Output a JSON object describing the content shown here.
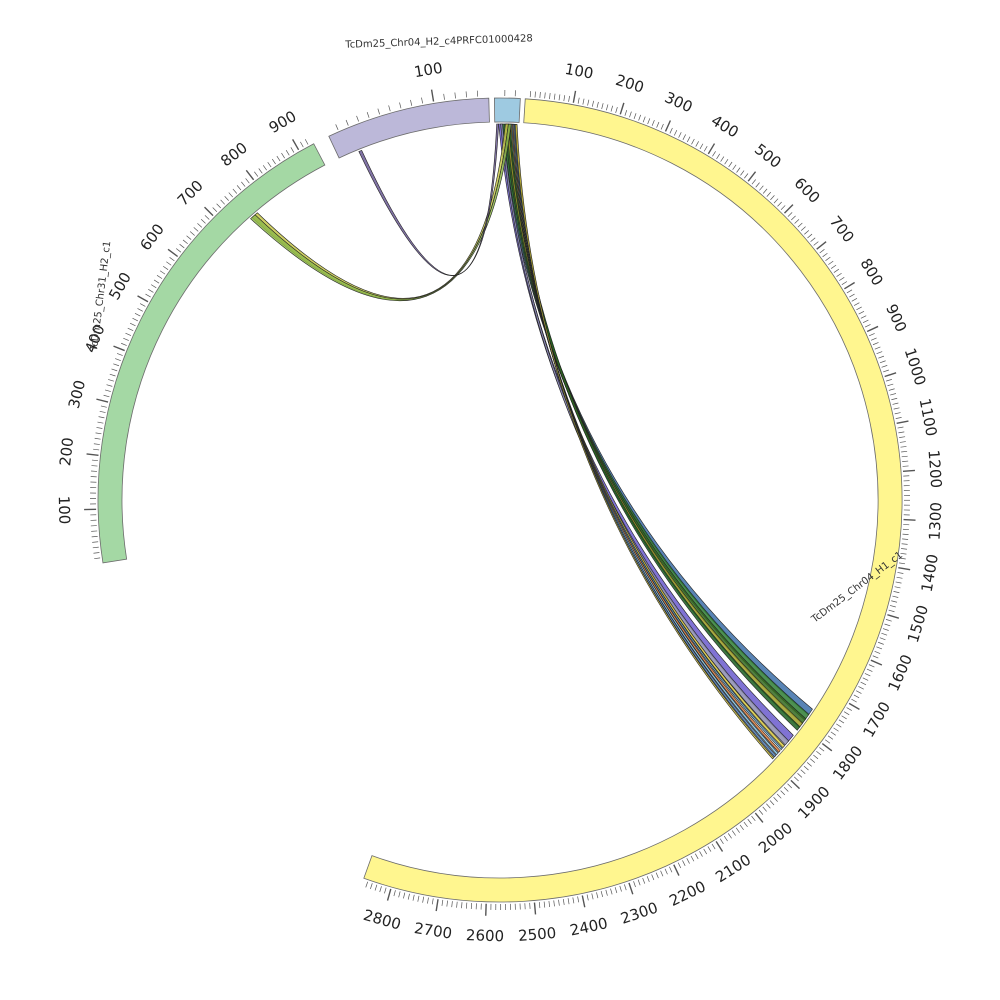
{
  "chart_data": {
    "type": "chord",
    "title": "",
    "segments": [
      {
        "id": "c1",
        "name": "TcDm25_Chr04_H1_c1",
        "length": 2860,
        "color": "#fff68f",
        "tick_labels": [
          "100",
          "200",
          "300",
          "400",
          "500",
          "600",
          "700",
          "800",
          "900",
          "1000",
          "1100",
          "1200",
          "1300",
          "1400",
          "1500",
          "1600",
          "1700",
          "1800",
          "1900",
          "2000",
          "2100",
          "2200",
          "2300",
          "2400",
          "2500",
          "2600",
          "2700",
          "2800"
        ]
      },
      {
        "id": "c2",
        "name": "TcDm25_Chr31_H2_c1",
        "length": 930,
        "color": "#a4d8a4",
        "tick_labels": [
          "100",
          "200",
          "300",
          "400",
          "500",
          "600",
          "700",
          "800",
          "900"
        ]
      },
      {
        "id": "c3",
        "name": "TcDm25_Chr04_H2_c4PRFC01000428",
        "length": 150,
        "color": "#bcb8d9",
        "tick_labels": [
          "100"
        ]
      },
      {
        "id": "c4",
        "name": "",
        "length": 25,
        "color": "#9ecae1",
        "tick_labels": []
      }
    ],
    "links": [
      {
        "from": "c4",
        "from_start": 6,
        "from_end": 9,
        "to": "c1",
        "to_start": 1752,
        "to_end": 1768,
        "color": "#3c6fa8"
      },
      {
        "from": "c4",
        "from_start": 8,
        "from_end": 11,
        "to": "c1",
        "to_start": 1766,
        "to_end": 1782,
        "color": "#2e7d32"
      },
      {
        "from": "c4",
        "from_start": 10,
        "from_end": 13,
        "to": "c1",
        "to_start": 1778,
        "to_end": 1792,
        "color": "#33691e"
      },
      {
        "from": "c4",
        "from_start": 12,
        "from_end": 15,
        "to": "c1",
        "to_start": 1790,
        "to_end": 1802,
        "color": "#9e9d24"
      },
      {
        "from": "c4",
        "from_start": 14,
        "from_end": 17,
        "to": "c1",
        "to_start": 1800,
        "to_end": 1810,
        "color": "#1b5e20"
      },
      {
        "from": "c4",
        "from_start": 4,
        "from_end": 7,
        "to": "c1",
        "to_start": 1824,
        "to_end": 1842,
        "color": "#6a5acd"
      },
      {
        "from": "c4",
        "from_start": 6,
        "from_end": 8,
        "to": "c1",
        "to_start": 1840,
        "to_end": 1852,
        "color": "#8c8cb0"
      },
      {
        "from": "c4",
        "from_start": 16,
        "from_end": 18,
        "to": "c1",
        "to_start": 1854,
        "to_end": 1860,
        "color": "#d8c83a"
      },
      {
        "from": "c4",
        "from_start": 17,
        "from_end": 19,
        "to": "c1",
        "to_start": 1862,
        "to_end": 1866,
        "color": "#5fa8d3"
      },
      {
        "from": "c4",
        "from_start": 18,
        "from_end": 20,
        "to": "c1",
        "to_start": 1869,
        "to_end": 1874,
        "color": "#e07b39"
      },
      {
        "from": "c4",
        "from_start": 19,
        "from_end": 21,
        "to": "c1",
        "to_start": 1876,
        "to_end": 1881,
        "color": "#7fbfdf"
      },
      {
        "from": "c4",
        "from_start": 20,
        "from_end": 22,
        "to": "c1",
        "to_start": 1883,
        "to_end": 1888,
        "color": "#4a7bb7"
      },
      {
        "from": "c4",
        "from_start": 21,
        "from_end": 23,
        "to": "c1",
        "to_start": 1890,
        "to_end": 1894,
        "color": "#c8b830"
      },
      {
        "from": "c4",
        "from_start": 11,
        "from_end": 14,
        "to": "c2",
        "to_start": 752,
        "to_end": 766,
        "color": "#c8c84a"
      },
      {
        "from": "c4",
        "from_start": 14,
        "from_end": 17,
        "to": "c2",
        "to_start": 748,
        "to_end": 760,
        "color": "#8fb84a"
      },
      {
        "from": "c4",
        "from_start": 2,
        "from_end": 4,
        "to": "c3",
        "to_start": 20,
        "to_end": 23,
        "color": "#6b5b95"
      }
    ]
  }
}
